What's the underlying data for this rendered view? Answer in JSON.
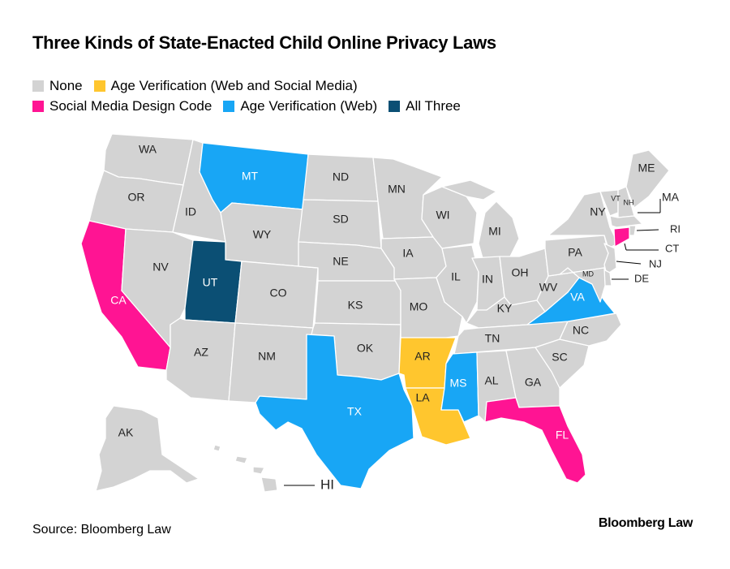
{
  "title": "Three Kinds of State-Enacted Child Online Privacy Laws",
  "colors": {
    "none": "#d3d3d3",
    "age_web_social": "#ffc62e",
    "design_code": "#ff1493",
    "age_web": "#18a6f5",
    "all_three": "#0b4f74"
  },
  "legend": [
    {
      "key": "none",
      "label": "None"
    },
    {
      "key": "age_web_social",
      "label": "Age Verification (Web and Social Media)"
    },
    {
      "key": "design_code",
      "label": "Social Media Design Code"
    },
    {
      "key": "age_web",
      "label": "Age Verification (Web)"
    },
    {
      "key": "all_three",
      "label": "All Three"
    }
  ],
  "states": {
    "WA": "none",
    "OR": "none",
    "CA": "design_code",
    "ID": "none",
    "NV": "none",
    "MT": "age_web",
    "WY": "none",
    "UT": "all_three",
    "AZ": "none",
    "CO": "none",
    "NM": "none",
    "ND": "none",
    "SD": "none",
    "NE": "none",
    "KS": "none",
    "OK": "none",
    "TX": "age_web",
    "MN": "none",
    "IA": "none",
    "MO": "none",
    "AR": "age_web_social",
    "LA": "age_web_social",
    "WI": "none",
    "IL": "none",
    "MI": "none",
    "IN": "none",
    "OH": "none",
    "KY": "none",
    "TN": "none",
    "MS": "age_web",
    "AL": "none",
    "GA": "none",
    "FL": "design_code",
    "SC": "none",
    "NC": "none",
    "VA": "age_web",
    "WV": "none",
    "PA": "none",
    "NY": "none",
    "VT": "none",
    "NH": "none",
    "ME": "none",
    "MA": "none",
    "RI": "none",
    "CT": "design_code",
    "NJ": "none",
    "DE": "none",
    "MD": "none",
    "AK": "none",
    "HI": "none"
  },
  "source": "Source: Bloomberg Law",
  "brand": "Bloomberg Law"
}
